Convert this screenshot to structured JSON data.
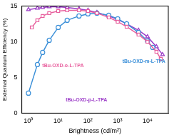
{
  "chart_data": {
    "type": "line",
    "x_label": "Brightness (cd/m²)",
    "y_label": "External Quantum Efficiency (%)",
    "log": "x",
    "grid": false,
    "xlim": [
      0.6,
      50000
    ],
    "xticks": [
      {
        "value": 1,
        "label": "10⁰"
      },
      {
        "value": 10,
        "label": "10¹"
      },
      {
        "value": 100,
        "label": "10²"
      },
      {
        "value": 1000,
        "label": "10³"
      },
      {
        "value": 10000,
        "label": "10⁴"
      }
    ],
    "ylim": [
      0,
      15
    ],
    "yticks": [
      0,
      5,
      10,
      15
    ],
    "series": [
      {
        "name": "tBu-OXD-o-L-TPA",
        "color": "#e8609e",
        "marker": "square",
        "x": [
          1.3,
          2,
          3,
          5,
          10,
          20,
          50,
          100,
          200,
          500,
          1000,
          2000,
          5000,
          10000,
          20000,
          28000
        ],
        "values": [
          12.0,
          13.0,
          13.6,
          14.0,
          14.3,
          14.4,
          14.4,
          14.3,
          14.0,
          13.4,
          12.8,
          12.1,
          11.0,
          10.0,
          8.6,
          7.6
        ]
      },
      {
        "name": "tBu-OXD-m-L-TPA",
        "color": "#3a8fd8",
        "marker": "circle",
        "x": [
          1,
          2,
          3,
          5,
          10,
          20,
          50,
          100,
          200,
          500,
          1000,
          2000,
          5000,
          10000,
          15000
        ],
        "values": [
          2.8,
          6.8,
          8.5,
          10.2,
          12.0,
          13.0,
          13.6,
          13.9,
          14.0,
          13.7,
          13.2,
          12.5,
          11.3,
          10.1,
          9.2
        ]
      },
      {
        "name": "tBu-OXD-p-L-TPA",
        "color": "#9c3cc8",
        "marker": "triangle",
        "x": [
          1,
          2,
          3,
          5,
          10,
          20,
          50,
          100,
          200,
          500,
          1000,
          2000,
          5000,
          10000,
          20000,
          32000
        ],
        "values": [
          14.5,
          14.7,
          14.8,
          14.9,
          14.9,
          14.8,
          14.6,
          14.4,
          14.1,
          13.6,
          13.1,
          12.5,
          11.6,
          10.7,
          9.3,
          8.2
        ]
      }
    ]
  }
}
